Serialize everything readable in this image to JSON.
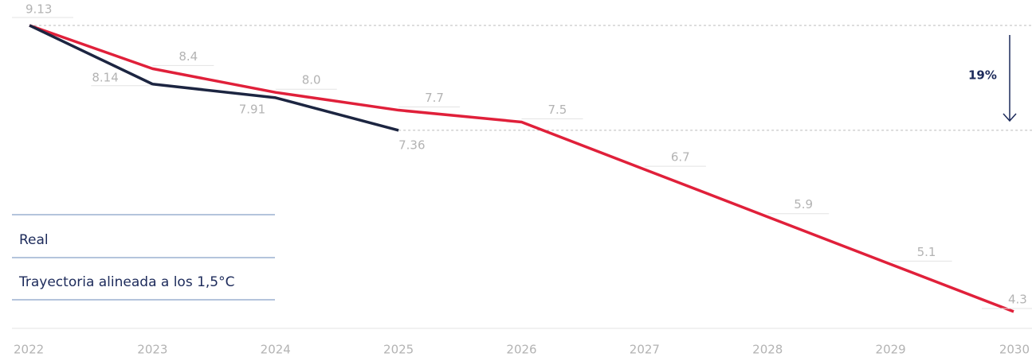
{
  "chart_data": {
    "type": "line",
    "categories": [
      "2022",
      "2023",
      "2024",
      "2025",
      "2026",
      "2027",
      "2028",
      "2029",
      "2030"
    ],
    "series": [
      {
        "name": "Real",
        "color": "#1c2541",
        "values": [
          9.13,
          8.14,
          7.91,
          7.36,
          null,
          null,
          null,
          null,
          null
        ]
      },
      {
        "name": "Trayectoria alineada a los 1,5°C",
        "color": "#e0203a",
        "values": [
          9.13,
          8.4,
          8.0,
          7.7,
          7.5,
          6.7,
          5.9,
          5.1,
          4.3
        ],
        "value_labels": [
          null,
          "8.4",
          "8.0",
          "7.7",
          "7.5",
          "6.7",
          "5.9",
          "5.1",
          "4.3"
        ]
      }
    ],
    "ylim": [
      4,
      9.5
    ],
    "annotation": "19%"
  }
}
